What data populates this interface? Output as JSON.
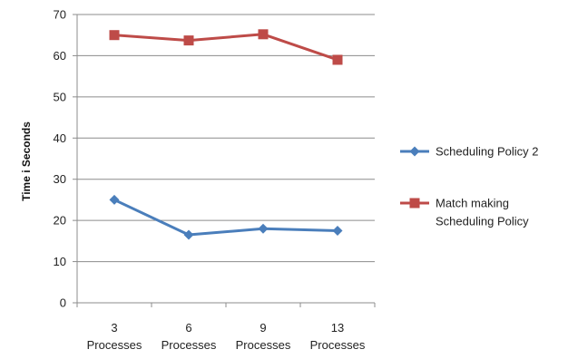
{
  "chart_data": {
    "type": "line",
    "title": "",
    "xlabel": "",
    "ylabel": "Time i Seconds",
    "ylim": [
      0,
      70
    ],
    "yticks": [
      "0",
      "10",
      "20",
      "30",
      "40",
      "50",
      "60",
      "70"
    ],
    "categories": [
      [
        "3",
        "Processes"
      ],
      [
        "6",
        "Processes"
      ],
      [
        "9",
        "Processes"
      ],
      [
        "13",
        "Processes"
      ]
    ],
    "grid": true,
    "legend_position": "right",
    "series": [
      {
        "name": "Scheduling Policy 2",
        "legend_lines": [
          "Scheduling Policy 2"
        ],
        "color": "#4a7ebb",
        "marker": "diamond",
        "values": [
          25,
          16.5,
          18,
          17.5
        ]
      },
      {
        "name": "Match making Scheduling Policy",
        "legend_lines": [
          "Match making",
          "Scheduling Policy"
        ],
        "color": "#be4b48",
        "marker": "square",
        "values": [
          65,
          63.7,
          65.2,
          59
        ]
      }
    ]
  }
}
